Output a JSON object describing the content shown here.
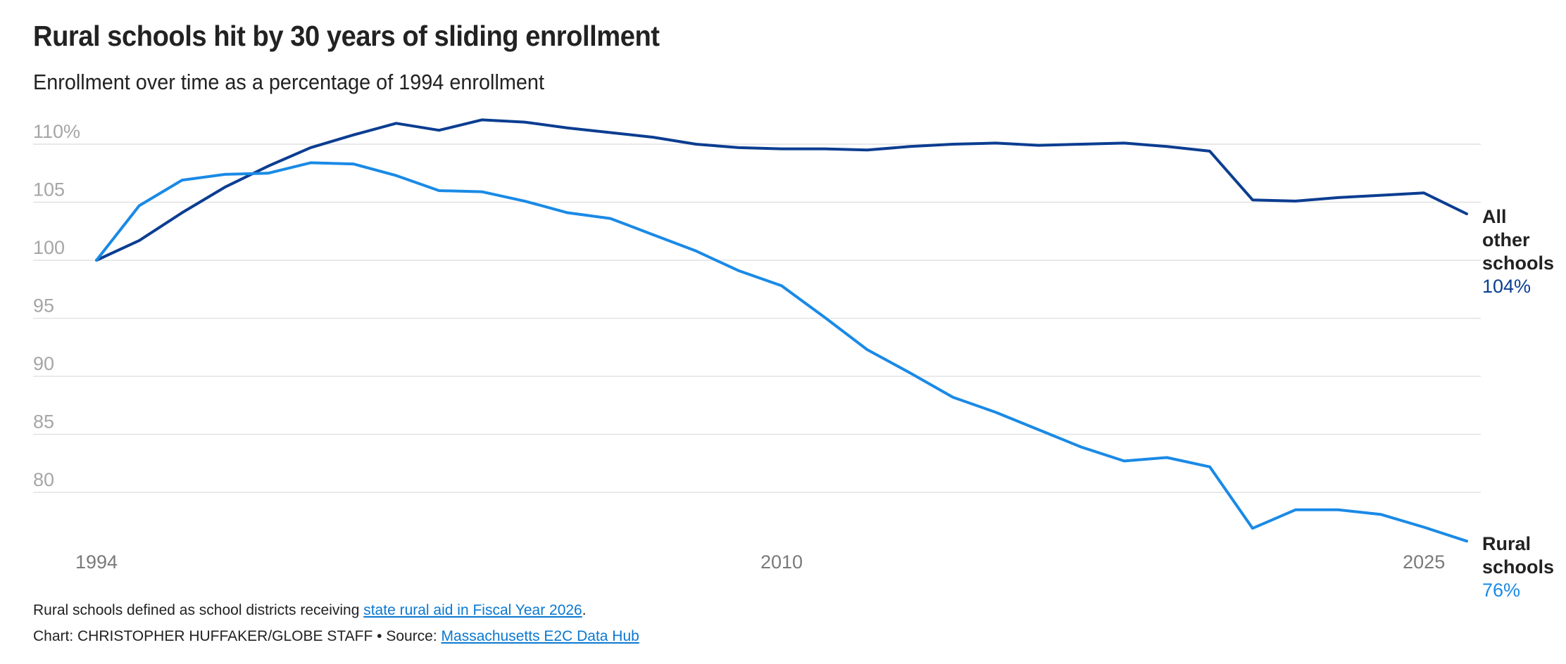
{
  "chart_data": {
    "type": "line",
    "title": "Rural schools hit by 30 years of sliding enrollment",
    "subtitle": "Enrollment over time as a percentage of 1994 enrollment",
    "xlabel": "",
    "ylabel": "",
    "x": [
      1994,
      1995,
      1996,
      1997,
      1998,
      1999,
      2000,
      2001,
      2002,
      2003,
      2004,
      2005,
      2006,
      2007,
      2008,
      2009,
      2010,
      2011,
      2012,
      2013,
      2014,
      2015,
      2016,
      2017,
      2018,
      2019,
      2020,
      2021,
      2022,
      2023,
      2024,
      2025,
      2026
    ],
    "xlim": [
      1994,
      2026
    ],
    "ylim": [
      75,
      112
    ],
    "y_ticks": [
      {
        "value": 110,
        "label": "110%"
      },
      {
        "value": 105,
        "label": "105"
      },
      {
        "value": 100,
        "label": "100"
      },
      {
        "value": 95,
        "label": "95"
      },
      {
        "value": 90,
        "label": "90"
      },
      {
        "value": 85,
        "label": "85"
      },
      {
        "value": 80,
        "label": "80"
      }
    ],
    "x_ticks": [
      {
        "value": 1994,
        "label": "1994"
      },
      {
        "value": 2010,
        "label": "2010"
      },
      {
        "value": 2025,
        "label": "2025"
      }
    ],
    "grid": true,
    "legend": "direct labels at line ends (right)",
    "series": [
      {
        "name": "All other schools",
        "end_label": "All\nother\nschools",
        "end_value": "104%",
        "color": "#0b3d91",
        "values": [
          100.0,
          101.7,
          104.1,
          106.3,
          108.1,
          109.7,
          110.8,
          111.8,
          111.2,
          112.1,
          111.9,
          111.4,
          111.0,
          110.6,
          110.0,
          109.7,
          109.6,
          109.6,
          109.5,
          109.8,
          110.0,
          110.1,
          109.9,
          110.0,
          110.1,
          109.8,
          109.4,
          105.2,
          105.1,
          105.4,
          105.6,
          105.8,
          104.0
        ]
      },
      {
        "name": "Rural schools",
        "end_label": "Rural\nschools",
        "end_value": "76%",
        "color": "#1a8ae6",
        "values": [
          100.0,
          104.7,
          106.9,
          107.4,
          107.5,
          108.4,
          108.3,
          107.3,
          106.0,
          105.9,
          105.1,
          104.1,
          103.6,
          102.2,
          100.8,
          99.1,
          97.8,
          95.1,
          92.3,
          90.3,
          88.2,
          86.9,
          85.4,
          83.9,
          82.7,
          83.0,
          82.2,
          76.9,
          78.5,
          78.5,
          78.1,
          77.0,
          75.8
        ]
      }
    ]
  },
  "footnote": {
    "text": "Rural schools defined as school districts receiving ",
    "link_text": "state rural aid in Fiscal Year 2026",
    "end": "."
  },
  "credit": {
    "text": "Chart: CHRISTOPHER HUFFAKER/GLOBE STAFF • Source: ",
    "link_text": "Massachusetts E2C Data Hub"
  },
  "colors": {
    "grid": "#e2e2e2",
    "axis_text": "#a6a6a6",
    "link": "#0b78d0"
  }
}
